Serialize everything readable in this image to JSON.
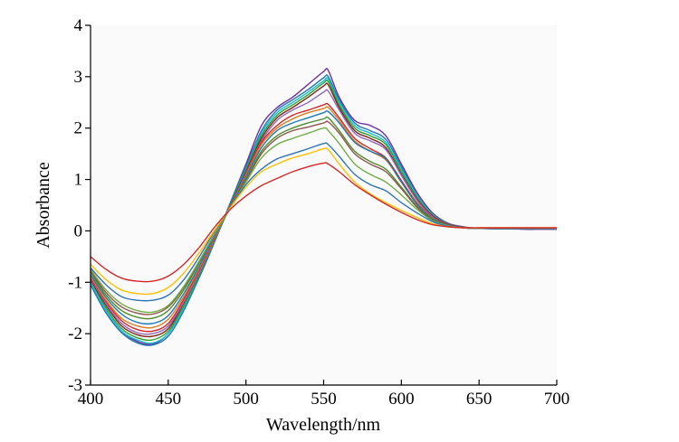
{
  "chart_data": {
    "type": "line",
    "title": "",
    "xlabel": "Wavelength/nm",
    "ylabel": "Absorbance",
    "xlim": [
      400,
      700
    ],
    "ylim": [
      -3,
      4
    ],
    "xticks": [
      400,
      450,
      500,
      550,
      600,
      650,
      700
    ],
    "yticks": [
      -3,
      -2,
      -1,
      0,
      1,
      2,
      3,
      4
    ],
    "x": [
      400,
      410,
      420,
      430,
      440,
      450,
      460,
      470,
      480,
      490,
      500,
      510,
      520,
      530,
      540,
      550,
      553,
      560,
      570,
      580,
      590,
      600,
      610,
      620,
      630,
      640,
      650,
      660,
      670,
      680,
      690,
      700
    ],
    "grid": false,
    "legend": "none",
    "series": [
      {
        "color": "#7030a0",
        "values": [
          -1.0,
          -1.55,
          -1.95,
          -2.15,
          -2.2,
          -2.0,
          -1.5,
          -0.9,
          -0.2,
          0.55,
          1.3,
          2.05,
          2.4,
          2.6,
          2.85,
          3.1,
          3.12,
          2.6,
          2.15,
          2.05,
          1.85,
          1.3,
          0.75,
          0.35,
          0.15,
          0.08,
          0.05,
          0.04,
          0.04,
          0.03,
          0.03,
          0.03
        ]
      },
      {
        "color": "#1f77b4",
        "values": [
          -1.05,
          -1.6,
          -1.98,
          -2.18,
          -2.22,
          -2.05,
          -1.55,
          -0.9,
          -0.2,
          0.55,
          1.25,
          1.95,
          2.35,
          2.55,
          2.75,
          2.98,
          3.0,
          2.55,
          2.1,
          1.95,
          1.78,
          1.25,
          0.7,
          0.33,
          0.14,
          0.07,
          0.05,
          0.04,
          0.04,
          0.04,
          0.04,
          0.04
        ]
      },
      {
        "color": "#17becf",
        "values": [
          -1.0,
          -1.55,
          -1.95,
          -2.12,
          -2.18,
          -2.0,
          -1.5,
          -0.85,
          -0.18,
          0.52,
          1.2,
          1.9,
          2.3,
          2.5,
          2.7,
          2.92,
          2.95,
          2.5,
          2.05,
          1.9,
          1.72,
          1.2,
          0.68,
          0.32,
          0.14,
          0.07,
          0.05,
          0.05,
          0.05,
          0.05,
          0.05,
          0.05
        ]
      },
      {
        "color": "#2ca02c",
        "values": [
          -0.95,
          -1.5,
          -1.9,
          -2.08,
          -2.12,
          -1.95,
          -1.45,
          -0.85,
          -0.18,
          0.5,
          1.18,
          1.85,
          2.25,
          2.45,
          2.65,
          2.88,
          2.9,
          2.45,
          2.0,
          1.85,
          1.68,
          1.15,
          0.65,
          0.3,
          0.13,
          0.07,
          0.05,
          0.05,
          0.05,
          0.05,
          0.05,
          0.05
        ]
      },
      {
        "color": "#7b2a1f",
        "values": [
          -0.95,
          -1.45,
          -1.85,
          -2.02,
          -2.05,
          -1.9,
          -1.4,
          -0.8,
          -0.15,
          0.5,
          1.15,
          1.8,
          2.2,
          2.4,
          2.6,
          2.82,
          2.84,
          2.4,
          1.95,
          1.8,
          1.62,
          1.1,
          0.62,
          0.3,
          0.13,
          0.07,
          0.05,
          0.05,
          0.05,
          0.05,
          0.05,
          0.05
        ]
      },
      {
        "color": "#9467bd",
        "values": [
          -0.92,
          -1.42,
          -1.8,
          -1.98,
          -2.0,
          -1.85,
          -1.38,
          -0.8,
          -0.15,
          0.48,
          1.12,
          1.75,
          2.15,
          2.35,
          2.5,
          2.7,
          2.72,
          2.35,
          1.9,
          1.75,
          1.58,
          1.08,
          0.6,
          0.28,
          0.12,
          0.06,
          0.05,
          0.05,
          0.05,
          0.05,
          0.05,
          0.05
        ]
      },
      {
        "color": "#d62728",
        "values": [
          -0.9,
          -1.38,
          -1.75,
          -1.92,
          -1.95,
          -1.8,
          -1.33,
          -0.75,
          -0.12,
          0.48,
          1.1,
          1.72,
          2.05,
          2.25,
          2.35,
          2.45,
          2.46,
          2.2,
          1.8,
          1.6,
          1.42,
          0.98,
          0.55,
          0.26,
          0.12,
          0.06,
          0.05,
          0.05,
          0.05,
          0.05,
          0.05,
          0.05
        ]
      },
      {
        "color": "#e07b1a",
        "values": [
          -0.88,
          -1.35,
          -1.7,
          -1.85,
          -1.88,
          -1.72,
          -1.28,
          -0.72,
          -0.1,
          0.47,
          1.08,
          1.68,
          2.0,
          2.18,
          2.3,
          2.38,
          2.4,
          2.15,
          1.75,
          1.55,
          1.38,
          0.95,
          0.53,
          0.25,
          0.11,
          0.06,
          0.05,
          0.05,
          0.05,
          0.05,
          0.05,
          0.05
        ]
      },
      {
        "color": "#1f77b4",
        "values": [
          -0.85,
          -1.3,
          -1.62,
          -1.78,
          -1.8,
          -1.65,
          -1.22,
          -0.68,
          -0.08,
          0.46,
          1.05,
          1.62,
          1.95,
          2.1,
          2.2,
          2.3,
          2.32,
          2.1,
          1.72,
          1.55,
          1.4,
          0.95,
          0.52,
          0.24,
          0.11,
          0.06,
          0.05,
          0.05,
          0.05,
          0.05,
          0.05,
          0.05
        ]
      },
      {
        "color": "#4a8c2a",
        "values": [
          -0.8,
          -1.25,
          -1.55,
          -1.68,
          -1.7,
          -1.55,
          -1.15,
          -0.62,
          -0.05,
          0.45,
          1.0,
          1.55,
          1.85,
          2.0,
          2.1,
          2.18,
          2.2,
          1.95,
          1.55,
          1.35,
          1.2,
          0.85,
          0.48,
          0.22,
          0.1,
          0.06,
          0.05,
          0.05,
          0.05,
          0.05,
          0.05,
          0.05
        ]
      },
      {
        "color": "#8c564b",
        "values": [
          -0.78,
          -1.2,
          -1.48,
          -1.6,
          -1.62,
          -1.48,
          -1.1,
          -0.6,
          -0.05,
          0.45,
          0.98,
          1.5,
          1.8,
          1.95,
          2.02,
          2.1,
          2.12,
          1.9,
          1.5,
          1.3,
          1.15,
          0.82,
          0.46,
          0.21,
          0.1,
          0.06,
          0.05,
          0.05,
          0.05,
          0.05,
          0.05,
          0.05
        ]
      },
      {
        "color": "#70ad47",
        "values": [
          -0.75,
          -1.15,
          -1.42,
          -1.55,
          -1.58,
          -1.45,
          -1.08,
          -0.58,
          -0.05,
          0.45,
          0.95,
          1.42,
          1.68,
          1.8,
          1.9,
          2.0,
          1.95,
          1.7,
          1.3,
          1.1,
          0.95,
          0.7,
          0.42,
          0.2,
          0.1,
          0.06,
          0.05,
          0.05,
          0.05,
          0.05,
          0.05,
          0.05
        ]
      },
      {
        "color": "#2e75b6",
        "values": [
          -0.72,
          -1.05,
          -1.28,
          -1.35,
          -1.35,
          -1.25,
          -0.95,
          -0.5,
          0.0,
          0.45,
          0.9,
          1.2,
          1.4,
          1.5,
          1.6,
          1.7,
          1.68,
          1.45,
          1.1,
          0.9,
          0.78,
          0.55,
          0.35,
          0.18,
          0.09,
          0.06,
          0.05,
          0.05,
          0.05,
          0.05,
          0.05,
          0.05
        ]
      },
      {
        "color": "#ffc000",
        "values": [
          -0.65,
          -0.95,
          -1.15,
          -1.22,
          -1.22,
          -1.1,
          -0.82,
          -0.42,
          0.02,
          0.45,
          0.85,
          1.15,
          1.3,
          1.42,
          1.5,
          1.6,
          1.58,
          1.3,
          0.95,
          0.72,
          0.55,
          0.4,
          0.26,
          0.14,
          0.08,
          0.06,
          0.06,
          0.06,
          0.06,
          0.06,
          0.06,
          0.06
        ]
      },
      {
        "color": "#d62728",
        "values": [
          -0.5,
          -0.75,
          -0.92,
          -0.98,
          -0.98,
          -0.88,
          -0.65,
          -0.32,
          0.08,
          0.42,
          0.68,
          0.88,
          1.02,
          1.15,
          1.25,
          1.32,
          1.3,
          1.15,
          0.9,
          0.7,
          0.52,
          0.36,
          0.22,
          0.12,
          0.08,
          0.06,
          0.06,
          0.06,
          0.06,
          0.06,
          0.06,
          0.06
        ]
      }
    ]
  }
}
